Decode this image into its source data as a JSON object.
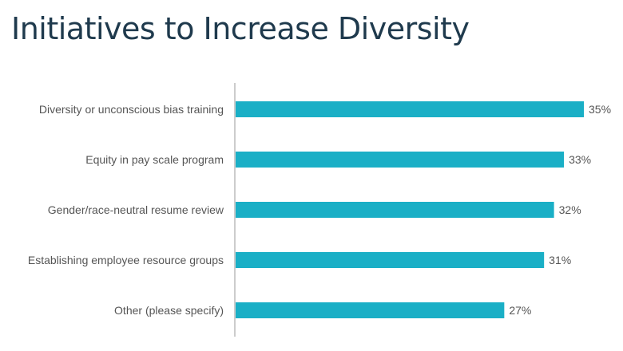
{
  "title": "Initiatives to Increase Diversity",
  "colors": {
    "bar": "#1aafc6",
    "axis": "#9a9a9a",
    "label_text": "#555555",
    "title_text": "#1f3a4d"
  },
  "chart_data": {
    "type": "bar",
    "orientation": "horizontal",
    "title": "Initiatives to Increase Diversity",
    "xlabel": "",
    "ylabel": "",
    "categories": [
      "Diversity or unconscious bias training",
      "Equity in pay scale program",
      "Gender/race-neutral resume review",
      "Establishing employee resource groups",
      "Other (please specify)"
    ],
    "values": [
      35,
      33,
      32,
      31,
      27
    ],
    "value_labels": [
      "35%",
      "33%",
      "32%",
      "31%",
      "27%"
    ],
    "unit": "%",
    "xlim": [
      0,
      35
    ],
    "grid": false,
    "legend": "none"
  }
}
